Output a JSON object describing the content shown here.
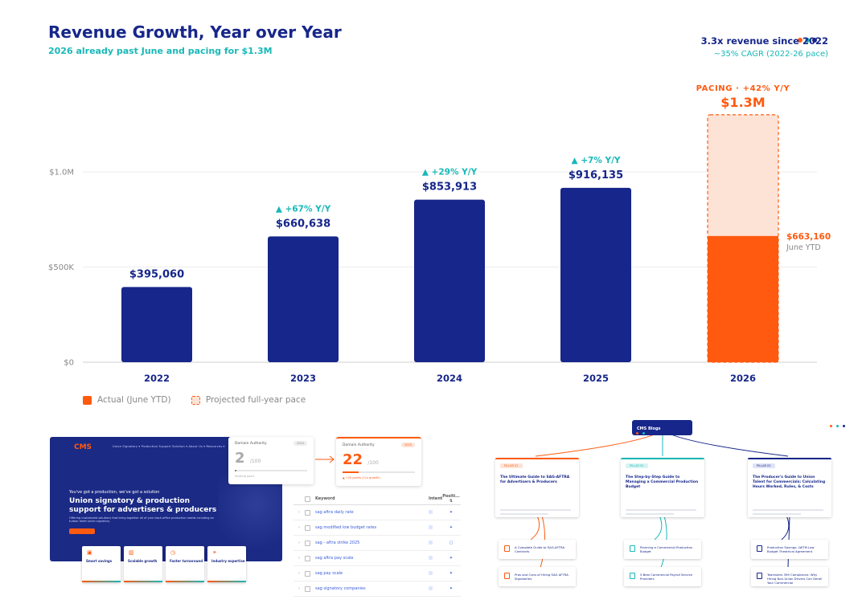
{
  "header": {
    "title": "Revenue Growth, Year over Year",
    "subtitle": "2026 already past June and pacing for $1.3M",
    "stat_primary": "3.3x revenue since 2022",
    "stat_secondary": "~35% CAGR (2022-26 pace)"
  },
  "colors": {
    "navy": "#16268a",
    "orange": "#ff5a10",
    "orange_light": "#fde3d6",
    "teal": "#19b8b8"
  },
  "chart_data": {
    "type": "bar",
    "title": "Revenue Growth, Year over Year",
    "subtitle": "2026 already past June and pacing for $1.3M",
    "categories": [
      "2022",
      "2023",
      "2024",
      "2025",
      "2026"
    ],
    "values": [
      395060,
      660638,
      853913,
      916135,
      663160
    ],
    "value_labels": [
      "$395,060",
      "$660,638",
      "$853,913",
      "$916,135",
      "$663,160"
    ],
    "growth_labels": [
      "",
      "▲ +67% Y/Y",
      "▲ +29% Y/Y",
      "▲ +7% Y/Y",
      ""
    ],
    "projected": {
      "category": "2026",
      "value": 1300000,
      "header": "PACING · +42% Y/Y",
      "label": "$1.3M",
      "actual_note": "June YTD"
    },
    "y_ticks": [
      {
        "value": 0,
        "label": "$0"
      },
      {
        "value": 500000,
        "label": "$500K"
      },
      {
        "value": 1000000,
        "label": "$1.0M"
      }
    ],
    "ylim": [
      0,
      1300000
    ],
    "grid": true,
    "legend": [
      "Actual (June YTD)",
      "Projected full-year pace"
    ],
    "legend_position": "bottom-left"
  },
  "website": {
    "logo": "CMS",
    "nav": "Union Signatory ▾  Production Support  Solution ▾  About Us ▾  Resources ▾",
    "eyebrow": "You've got a production, we've got a solution",
    "hero": "Union signatory & production support for advertisers & producers",
    "description": "Offering customized solutions that bring together all of your back-office production needs including an turban meet union signatory.",
    "cards": [
      "Smart savings",
      "Scalable growth",
      "Faster turnaround",
      "Industry expertise"
    ]
  },
  "domain_authority": {
    "label": "Domain Authority",
    "before": {
      "value": "2",
      "of": "/100",
      "tag": "2024",
      "note": "Starting point"
    },
    "after": {
      "value": "22",
      "of": "/100",
      "tag": "2025",
      "note": "▲ +20 points (11x growth)"
    }
  },
  "keywords": {
    "headers": {
      "keyword": "Keyword",
      "intent": "Intent",
      "position": "Positi... ⇅"
    },
    "rows": [
      {
        "keyword": "sag aftra daily rate",
        "pos": "✦"
      },
      {
        "keyword": "sag modified low budget rates",
        "pos": "✦"
      },
      {
        "keyword": "sag - aftra strike 2025",
        "pos": "▢"
      },
      {
        "keyword": "sag aftra pay scale",
        "pos": "✦"
      },
      {
        "keyword": "sag pay scale",
        "pos": "✦"
      },
      {
        "keyword": "sag signatory companies",
        "pos": "✦"
      }
    ]
  },
  "content_map": {
    "root": "CMS Blogs",
    "pillars": [
      {
        "tag": "PILLAR 01",
        "title": "The Ultimate Guide to SAG-AFTRA for Advertisers & Producers",
        "subs": [
          "A Complete Guide to SAG-AFTRA Contracts",
          "Pros and Cons of Hiring SAG AFTRA Signatories"
        ]
      },
      {
        "tag": "PILLAR 02",
        "title": "The Step-by-Step Guide to Managing a Commercial Production Budget",
        "subs": [
          "Planning a Commercial Production Budget",
          "5 Best Commercial Payroll Service Providers"
        ]
      },
      {
        "tag": "PILLAR 03",
        "title": "The Producer's Guide to Union Talent for Commercials: Calculating Hours Worked, Rules, & Costs",
        "subs": [
          "Production Savings: LWTM Low Budget Theatrical Agreement",
          "Teamsters 399 Compliance: Why Hiring Non-Union Drivers Can Derail Your Commercial"
        ]
      }
    ]
  }
}
